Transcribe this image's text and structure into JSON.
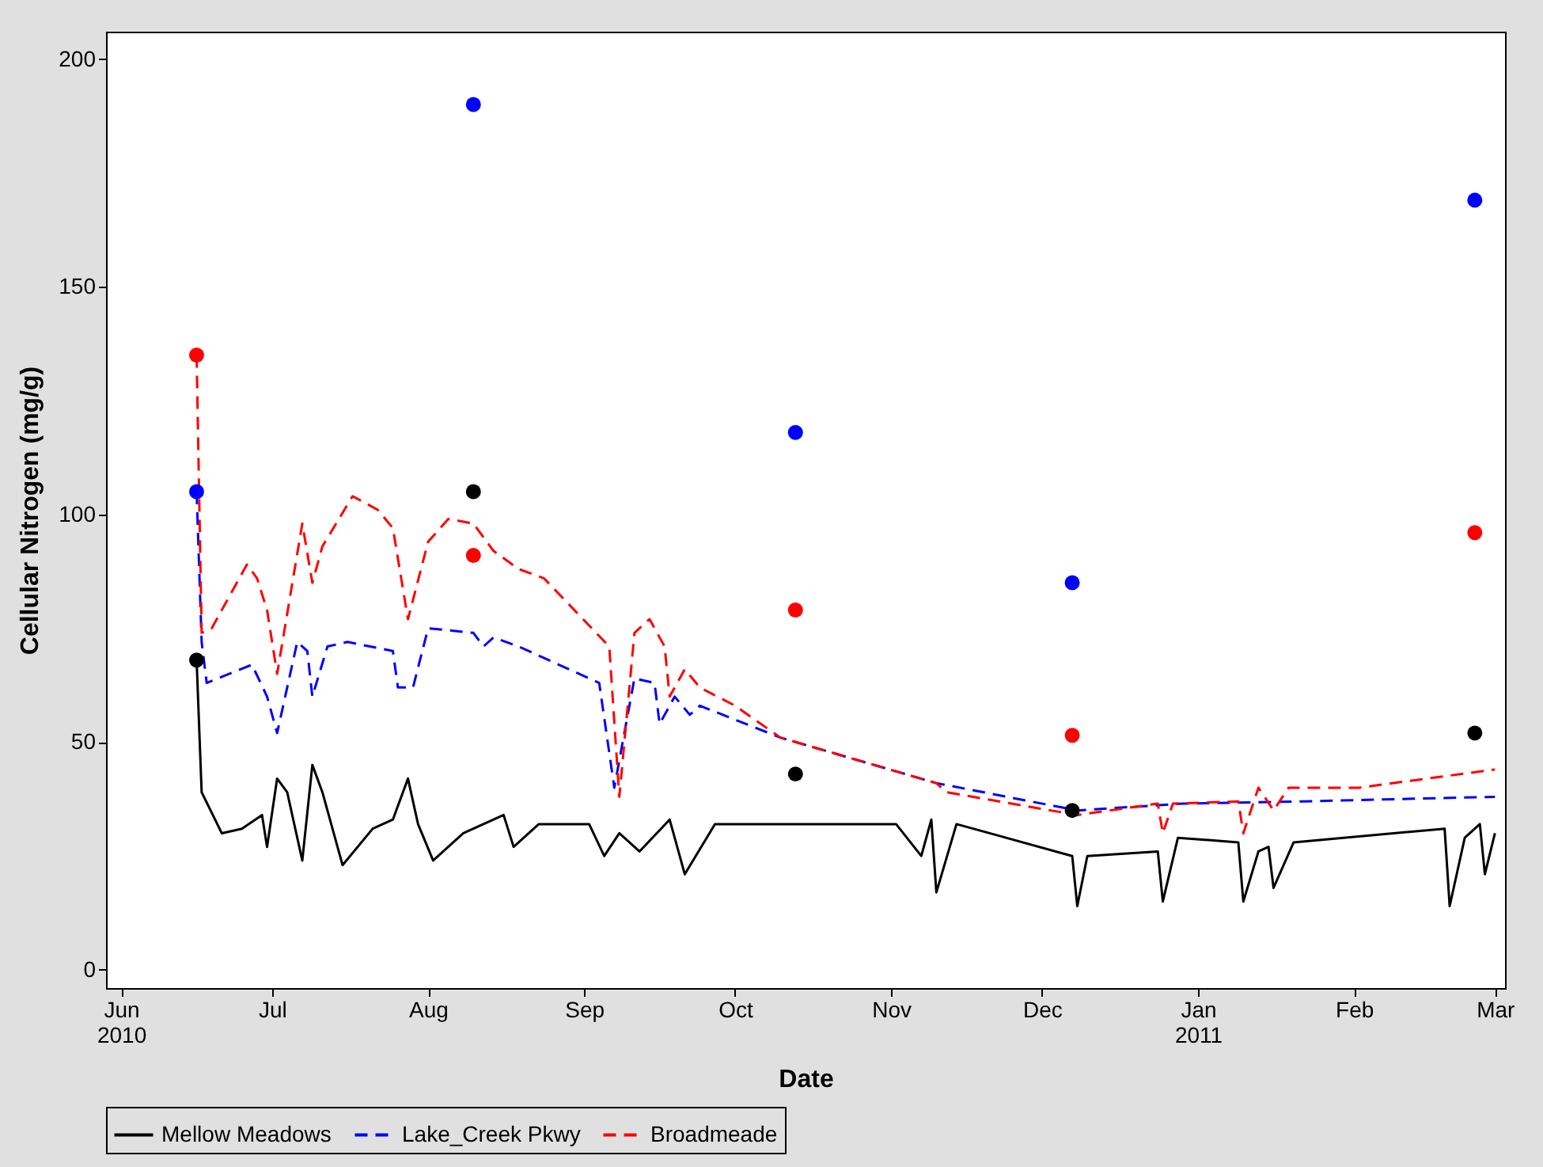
{
  "chart_data": {
    "type": "line",
    "xlabel": "Date",
    "ylabel": "Cellular Nitrogen (mg/g)",
    "xlim": [
      "2010-05-29",
      "2011-03-03"
    ],
    "ylim": [
      -4,
      206
    ],
    "xticks": [
      {
        "value": "2010-06-01",
        "label": "Jun 2010"
      },
      {
        "value": "2010-07-01",
        "label": "Jul"
      },
      {
        "value": "2010-08-01",
        "label": "Aug"
      },
      {
        "value": "2010-09-01",
        "label": "Sep"
      },
      {
        "value": "2010-10-01",
        "label": "Oct"
      },
      {
        "value": "2010-11-01",
        "label": "Nov"
      },
      {
        "value": "2010-12-01",
        "label": "Dec"
      },
      {
        "value": "2011-01-01",
        "label": "Jan 2011"
      },
      {
        "value": "2011-02-01",
        "label": "Feb"
      },
      {
        "value": "2011-03-01",
        "label": "Mar"
      }
    ],
    "yticks": [
      0,
      50,
      100,
      150,
      200
    ],
    "grid": false,
    "legend": "bottom",
    "series": [
      {
        "name": "Mellow Meadows",
        "color": "#000000",
        "line_style": "solid",
        "marker": "none",
        "x": [
          "2010-06-16",
          "2010-06-17",
          "2010-06-21",
          "2010-06-25",
          "2010-06-29",
          "2010-06-30",
          "2010-07-02",
          "2010-07-04",
          "2010-07-07",
          "2010-07-09",
          "2010-07-11",
          "2010-07-15",
          "2010-07-21",
          "2010-07-25",
          "2010-07-28",
          "2010-07-30",
          "2010-08-02",
          "2010-08-08",
          "2010-08-16",
          "2010-08-18",
          "2010-08-23",
          "2010-09-02",
          "2010-09-05",
          "2010-09-08",
          "2010-09-12",
          "2010-09-18",
          "2010-09-21",
          "2010-09-27",
          "2010-11-02",
          "2010-11-07",
          "2010-11-09",
          "2010-11-10",
          "2010-11-14",
          "2010-12-07",
          "2010-12-08",
          "2010-12-10",
          "2010-12-24",
          "2010-12-25",
          "2010-12-28",
          "2011-01-09",
          "2011-01-10",
          "2011-01-13",
          "2011-01-15",
          "2011-01-16",
          "2011-01-20",
          "2011-02-19",
          "2011-02-20",
          "2011-02-23",
          "2011-02-26",
          "2011-02-27",
          "2011-03-01"
        ],
        "values": [
          68,
          39,
          30,
          31,
          34,
          27,
          42,
          39,
          24,
          45,
          39,
          23,
          31,
          33,
          42,
          32,
          24,
          30,
          34,
          27,
          32,
          32,
          25,
          30,
          26,
          33,
          21,
          32,
          32,
          25,
          33,
          17,
          32,
          25,
          14,
          25,
          26,
          15,
          29,
          28,
          15,
          26,
          27,
          18,
          28,
          31,
          14,
          29,
          32,
          21,
          30
        ]
      },
      {
        "name": "Lake_Creek Pkwy",
        "color": "#0000ff",
        "line_style": "dashed",
        "marker": "none",
        "x": [
          "2010-06-16",
          "2010-06-17",
          "2010-06-18",
          "2010-06-27",
          "2010-06-30",
          "2010-07-02",
          "2010-07-06",
          "2010-07-08",
          "2010-07-09",
          "2010-07-12",
          "2010-07-16",
          "2010-07-25",
          "2010-07-26",
          "2010-07-29",
          "2010-08-01",
          "2010-08-10",
          "2010-08-12",
          "2010-08-14",
          "2010-08-19",
          "2010-09-04",
          "2010-09-07",
          "2010-09-11",
          "2010-09-15",
          "2010-09-16",
          "2010-09-19",
          "2010-09-22",
          "2010-09-24",
          "2010-10-10",
          "2010-11-10",
          "2010-12-08",
          "2010-12-29",
          "2011-01-22",
          "2011-03-01"
        ],
        "values": [
          105,
          72,
          63,
          67,
          60,
          52,
          72,
          70,
          60,
          71,
          72,
          70,
          62,
          62,
          75,
          74,
          71,
          73,
          71,
          63,
          40,
          64,
          63,
          54,
          60,
          56,
          58,
          51,
          41,
          35,
          36.5,
          37,
          38
        ]
      },
      {
        "name": "Broadmeade",
        "color": "#ff0000",
        "line_style": "dashed",
        "marker": "none",
        "x": [
          "2010-06-16",
          "2010-06-17",
          "2010-06-19",
          "2010-06-26",
          "2010-06-28",
          "2010-06-30",
          "2010-07-02",
          "2010-07-07",
          "2010-07-09",
          "2010-07-11",
          "2010-07-17",
          "2010-07-22",
          "2010-07-25",
          "2010-07-28",
          "2010-08-01",
          "2010-08-05",
          "2010-08-10",
          "2010-08-14",
          "2010-08-19",
          "2010-08-24",
          "2010-09-06",
          "2010-09-08",
          "2010-09-11",
          "2010-09-14",
          "2010-09-17",
          "2010-09-18",
          "2010-09-21",
          "2010-09-24",
          "2010-10-01",
          "2010-10-10",
          "2010-11-10",
          "2010-11-12",
          "2010-12-08",
          "2010-12-24",
          "2010-12-25",
          "2010-12-27",
          "2011-01-09",
          "2011-01-10",
          "2011-01-13",
          "2011-01-16",
          "2011-01-19",
          "2011-02-02",
          "2011-03-01"
        ],
        "values": [
          135,
          74,
          75,
          89,
          86,
          79,
          65,
          98,
          85,
          93,
          104,
          101,
          97,
          77,
          94,
          99,
          98,
          92,
          88,
          86,
          71,
          38,
          74,
          77,
          71,
          60,
          66,
          62,
          58,
          51,
          41,
          39,
          34,
          36.5,
          30,
          36.5,
          37,
          30,
          40,
          35,
          40,
          40,
          44
        ]
      },
      {
        "type": "scatter",
        "color": "#000000",
        "marker": "circle",
        "x": [
          "2010-06-16",
          "2010-08-10",
          "2010-10-13",
          "2010-12-07",
          "2011-02-25"
        ],
        "values": [
          68,
          105,
          43,
          35,
          52
        ]
      },
      {
        "type": "scatter",
        "color": "#0000ff",
        "marker": "circle",
        "x": [
          "2010-06-16",
          "2010-08-10",
          "2010-10-13",
          "2010-12-07",
          "2011-02-25"
        ],
        "values": [
          105,
          190,
          118,
          85,
          169
        ]
      },
      {
        "type": "scatter",
        "color": "#ff0000",
        "marker": "circle",
        "x": [
          "2010-06-16",
          "2010-08-10",
          "2010-10-13",
          "2010-12-07",
          "2011-02-25"
        ],
        "values": [
          135,
          91,
          79,
          51.5,
          96
        ]
      }
    ]
  }
}
